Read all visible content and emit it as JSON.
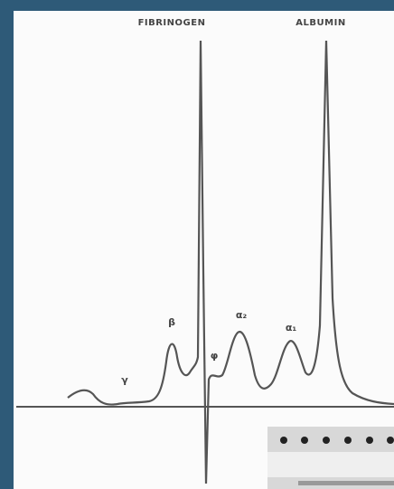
{
  "header": {
    "fibrinogen": "FIBRINOGEN",
    "albumin": "ALBUMIN"
  },
  "peaks": [
    {
      "label": "γ"
    },
    {
      "label": "β"
    },
    {
      "label": "φ"
    },
    {
      "label": "α₂"
    },
    {
      "label": "α₁"
    }
  ]
}
